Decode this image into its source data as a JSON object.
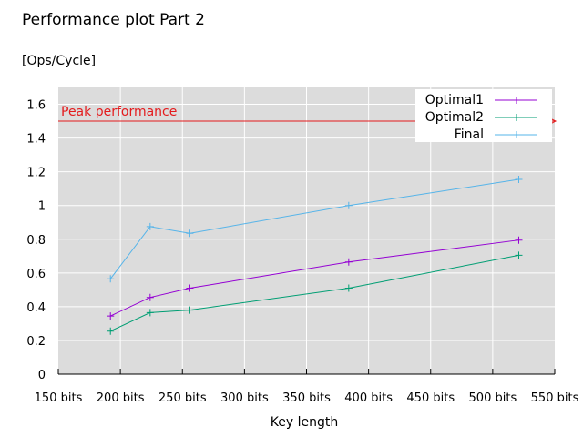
{
  "chart_data": {
    "type": "line",
    "title": "Performance plot Part 2",
    "ylabel": "[Ops/Cycle]",
    "xlabel": "Key length",
    "xlim": [
      150,
      550
    ],
    "ylim": [
      0,
      1.7
    ],
    "x_ticks": [
      150,
      200,
      250,
      300,
      350,
      400,
      450,
      500,
      550
    ],
    "x_tick_labels": [
      "150 bits",
      "200 bits",
      "250 bits",
      "300 bits",
      "350 bits",
      "400 bits",
      "450 bits",
      "500 bits",
      "550 bits"
    ],
    "y_ticks": [
      0,
      0.2,
      0.4,
      0.6,
      0.8,
      1,
      1.2,
      1.4,
      1.6
    ],
    "y_tick_labels": [
      "0",
      "0.2",
      "0.4",
      "0.6",
      "0.8",
      "1",
      "1.2",
      "1.4",
      "1.6"
    ],
    "grid": true,
    "legend_position": "top-right",
    "background_color": "#dcdcdc",
    "grid_color": "#ffffff",
    "x": [
      192,
      224,
      256,
      384,
      521
    ],
    "series": [
      {
        "name": "Optimal1",
        "color": "#9400d3",
        "values": [
          0.345,
          0.455,
          0.51,
          0.665,
          0.795
        ]
      },
      {
        "name": "Optimal2",
        "color": "#009e73",
        "values": [
          0.255,
          0.365,
          0.38,
          0.51,
          0.705
        ]
      },
      {
        "name": "Final",
        "color": "#56b4e9",
        "values": [
          0.565,
          0.875,
          0.835,
          1.0,
          1.155
        ]
      }
    ],
    "reference_line": {
      "label": "Peak performance",
      "value": 1.5,
      "color": "#e41a1c"
    }
  }
}
